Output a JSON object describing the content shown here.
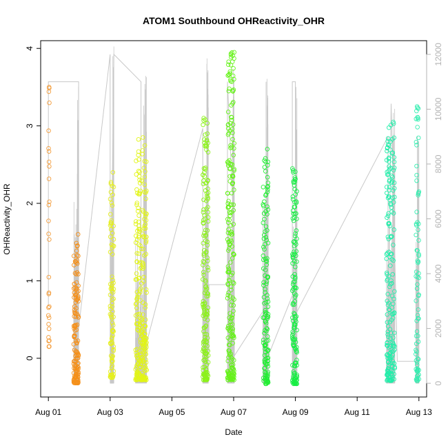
{
  "chart_data": {
    "type": "scatter",
    "title": "ATOM1 Southbound OHReactivity_OHR",
    "xlabel": "Date",
    "ylabel": "OHReactivity_OHR",
    "x_tick_labels": [
      "Aug 01",
      "Aug 03",
      "Aug 05",
      "Aug 07",
      "Aug 09",
      "Aug 11",
      "Aug 13"
    ],
    "x_tick_days": [
      1,
      3,
      5,
      7,
      9,
      11,
      13
    ],
    "xlim": [
      0.75,
      13.25
    ],
    "ylim": [
      -0.5,
      4.1
    ],
    "y_ticks": [
      0,
      1,
      2,
      3,
      4
    ],
    "y_tick_labels": [
      "0",
      "1",
      "2",
      "3",
      "4"
    ],
    "y2lim": [
      -500,
      12500
    ],
    "y2_ticks": [
      0,
      2000,
      4000,
      6000,
      8000,
      10000,
      12000
    ],
    "y2_tick_labels": [
      "0",
      "2000",
      "4000",
      "6000",
      "8000",
      "10000",
      "12000"
    ],
    "grid": false,
    "colors": {
      "line": "#c8c8c8",
      "frame": "#000000",
      "right_axis": "#b3b3b3"
    },
    "point_groups": [
      {
        "x_start": 1.0,
        "x_end": 1.03,
        "y_min": 0.15,
        "y_max": 3.5,
        "color": "#f39c3a",
        "n": 30
      },
      {
        "x_start": 1.82,
        "x_end": 1.98,
        "y_min": -0.32,
        "y_max": 1.6,
        "color": "#f5901a",
        "n": 140
      },
      {
        "x_start": 3.0,
        "x_end": 3.12,
        "y_min": -0.25,
        "y_max": 2.4,
        "color": "#e6f01c",
        "n": 90
      },
      {
        "x_start": 3.82,
        "x_end": 4.18,
        "y_min": -0.28,
        "y_max": 2.85,
        "color": "#e2f515",
        "n": 260
      },
      {
        "x_start": 6.0,
        "x_end": 6.18,
        "y_min": -0.28,
        "y_max": 3.1,
        "color": "#8cf21a",
        "n": 180
      },
      {
        "x_start": 6.8,
        "x_end": 7.02,
        "y_min": -0.28,
        "y_max": 3.95,
        "color": "#66f21a",
        "n": 230
      },
      {
        "x_start": 7.95,
        "x_end": 8.12,
        "y_min": -0.33,
        "y_max": 2.7,
        "color": "#22ee33",
        "n": 140
      },
      {
        "x_start": 8.9,
        "x_end": 9.05,
        "y_min": -0.33,
        "y_max": 2.45,
        "color": "#18ee44",
        "n": 150
      },
      {
        "x_start": 11.95,
        "x_end": 12.22,
        "y_min": -0.29,
        "y_max": 3.05,
        "color": "#22eeaa",
        "n": 200
      },
      {
        "x_start": 12.9,
        "x_end": 13.0,
        "y_min": -0.29,
        "y_max": 3.25,
        "color": "#33eeb0",
        "n": 80
      }
    ],
    "line_path": [
      {
        "day": 1.0,
        "value": 2800
      },
      {
        "day": 1.0,
        "value": 11000
      },
      {
        "day": 1.98,
        "value": 11000
      },
      {
        "day": 1.98,
        "value": 2000
      },
      {
        "day": 3.0,
        "value": 12000
      },
      {
        "day": 3.0,
        "value": 500
      },
      {
        "day": 3.12,
        "value": 12000
      },
      {
        "day": 4.0,
        "value": 11000
      },
      {
        "day": 4.0,
        "value": 500
      },
      {
        "day": 4.0,
        "value": 700
      },
      {
        "day": 6.0,
        "value": 9300
      },
      {
        "day": 6.0,
        "value": 1500
      },
      {
        "day": 6.2,
        "value": 1200
      },
      {
        "day": 6.2,
        "value": 3600
      },
      {
        "day": 6.8,
        "value": 3600
      },
      {
        "day": 6.8,
        "value": 11000
      },
      {
        "day": 7.02,
        "value": 5300
      },
      {
        "day": 7.02,
        "value": 1000
      },
      {
        "day": 8.05,
        "value": 2800
      },
      {
        "day": 8.05,
        "value": 11000
      },
      {
        "day": 8.05,
        "value": 800
      },
      {
        "day": 8.9,
        "value": 3200
      },
      {
        "day": 8.9,
        "value": 11000
      },
      {
        "day": 9.0,
        "value": 11000
      },
      {
        "day": 9.0,
        "value": 2500
      },
      {
        "day": 12.0,
        "value": 9000
      },
      {
        "day": 12.0,
        "value": 700
      },
      {
        "day": 12.1,
        "value": 10200
      },
      {
        "day": 12.3,
        "value": 800
      },
      {
        "day": 12.95,
        "value": 800
      },
      {
        "day": 12.95,
        "value": 9000
      }
    ],
    "spike_groups": [
      {
        "x_start": 1.82,
        "x_end": 1.98,
        "max": 11100
      },
      {
        "x_start": 3.0,
        "x_end": 3.12,
        "max": 12300
      },
      {
        "x_start": 3.82,
        "x_end": 4.18,
        "max": 11300
      },
      {
        "x_start": 6.0,
        "x_end": 6.18,
        "max": 11900
      },
      {
        "x_start": 6.8,
        "x_end": 7.02,
        "max": 11500
      },
      {
        "x_start": 7.95,
        "x_end": 8.12,
        "max": 11200
      },
      {
        "x_start": 8.9,
        "x_end": 9.05,
        "max": 11000
      },
      {
        "x_start": 11.95,
        "x_end": 12.22,
        "max": 10200
      },
      {
        "x_start": 12.9,
        "x_end": 13.0,
        "max": 9500
      }
    ]
  }
}
